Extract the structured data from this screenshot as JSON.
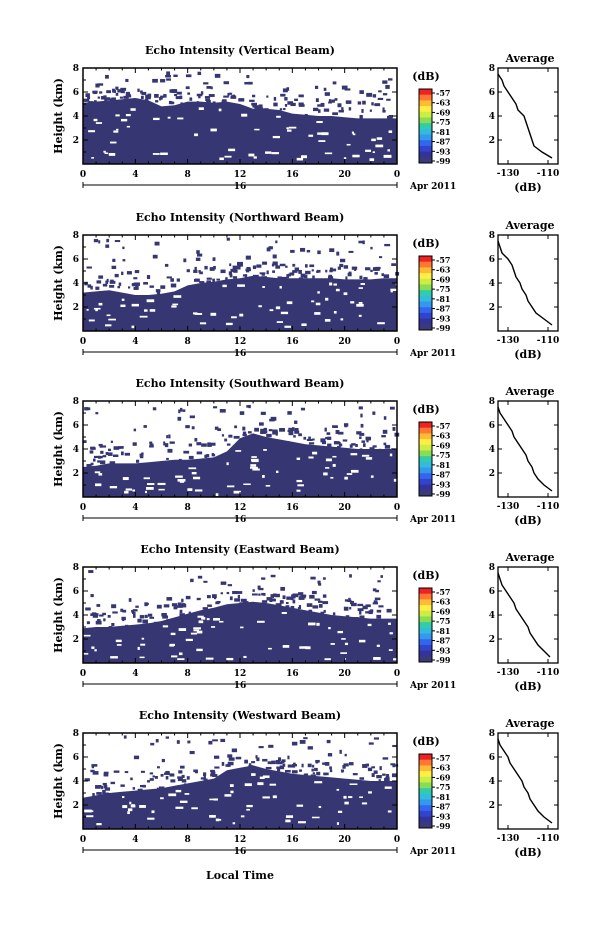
{
  "x_axis": {
    "ticks": [
      "0",
      "4",
      "8",
      "12",
      "16",
      "20",
      "0"
    ],
    "day": "16",
    "date_label": "Apr 2011",
    "title": "Local Time"
  },
  "colorbar": {
    "unit": "(dB)",
    "labels": [
      "-57",
      "-63",
      "-69",
      "-75",
      "-81",
      "-87",
      "-93",
      "-99"
    ],
    "colors": [
      "#ee2222",
      "#ff7733",
      "#ffbb33",
      "#ffee44",
      "#ccee44",
      "#88dd55",
      "#33ccaa",
      "#33bbdd",
      "#3399ee",
      "#3366ee",
      "#3344cc",
      "#333399",
      "#3a3a78"
    ]
  },
  "colors": {
    "echo_fill": "#363673"
  },
  "panels": [
    {
      "title": "Echo Intensity (Vertical Beam)",
      "ylabel": "Height (km)",
      "yticks": [
        "2",
        "4",
        "6",
        "8"
      ]
    },
    {
      "title": "Echo Intensity (Northward Beam)",
      "ylabel": "Height (km)",
      "yticks": [
        "2",
        "4",
        "6",
        "8"
      ]
    },
    {
      "title": "Echo Intensity (Southward Beam)",
      "ylabel": "Height (km)",
      "yticks": [
        "2",
        "4",
        "6",
        "8"
      ]
    },
    {
      "title": "Echo Intensity (Eastward Beam)",
      "ylabel": "Height (km)",
      "yticks": [
        "2",
        "4",
        "6",
        "8"
      ]
    },
    {
      "title": "Echo Intensity (Westward Beam)",
      "ylabel": "Height (km)",
      "yticks": [
        "2",
        "4",
        "6",
        "8"
      ]
    }
  ],
  "profile": {
    "title": "Average",
    "xlabel": "(dB)",
    "xticks": [
      "-130",
      "-110"
    ],
    "yticks": [
      "2",
      "4",
      "6",
      "8"
    ]
  },
  "chart_data": {
    "type": "heatmap",
    "x_unit": "local hour",
    "xlim": [
      0,
      24
    ],
    "ylim": [
      0,
      8
    ],
    "clim": [
      -99,
      -57
    ],
    "panels": [
      {
        "beam": "Vertical",
        "echo_top_km": [
          5.1,
          5.2,
          5.3,
          5.4,
          5.5,
          5.3,
          4.8,
          4.9,
          5.2,
          5.2,
          5.1,
          5.2,
          5.0,
          4.6,
          4.6,
          4.5,
          4.2,
          4.1,
          4.0,
          4.0,
          3.9,
          3.8,
          3.8,
          3.8,
          3.8
        ],
        "profile": {
          "km": [
            0.5,
            1.0,
            1.5,
            2.0,
            2.5,
            3.0,
            3.5,
            4.0,
            4.5,
            5.0,
            5.5,
            6.0,
            6.5,
            7.0,
            7.5
          ],
          "dB": [
            -108,
            -113,
            -117,
            -118,
            -119,
            -120,
            -121,
            -122,
            -125,
            -126,
            -128,
            -130,
            -132,
            -133,
            -135
          ]
        }
      },
      {
        "beam": "Northward",
        "echo_top_km": [
          3.2,
          3.3,
          3.4,
          3.2,
          3.0,
          3.0,
          3.1,
          3.3,
          3.8,
          4.0,
          4.1,
          4.3,
          4.4,
          4.6,
          4.5,
          4.4,
          4.4,
          4.4,
          4.4,
          4.4,
          4.3,
          4.3,
          4.3,
          4.4,
          4.4
        ],
        "profile": {
          "km": [
            0.5,
            1.0,
            1.5,
            2.0,
            2.5,
            3.0,
            3.5,
            4.0,
            4.5,
            5.0,
            5.5,
            6.0,
            6.5,
            7.0,
            7.5
          ],
          "dB": [
            -108,
            -112,
            -116,
            -118,
            -120,
            -121,
            -123,
            -124,
            -126,
            -127,
            -128,
            -130,
            -133,
            -134,
            -135
          ]
        }
      },
      {
        "beam": "Southward",
        "echo_top_km": [
          2.5,
          2.6,
          2.8,
          2.8,
          2.8,
          2.9,
          3.0,
          3.1,
          3.1,
          3.2,
          3.3,
          3.8,
          4.9,
          5.3,
          5.0,
          4.8,
          4.6,
          4.4,
          4.3,
          4.2,
          4.1,
          4.0,
          4.0,
          4.0,
          4.0
        ],
        "profile": {
          "km": [
            0.5,
            1.0,
            1.5,
            2.0,
            2.5,
            3.0,
            3.5,
            4.0,
            4.5,
            5.0,
            5.5,
            6.0,
            6.5,
            7.0,
            7.5
          ],
          "dB": [
            -108,
            -112,
            -115,
            -117,
            -118,
            -120,
            -121,
            -123,
            -125,
            -127,
            -128,
            -130,
            -132,
            -134,
            -135
          ]
        }
      },
      {
        "beam": "Eastward",
        "echo_top_km": [
          2.9,
          3.0,
          3.0,
          3.1,
          3.2,
          3.3,
          3.5,
          3.8,
          4.1,
          4.4,
          4.6,
          4.9,
          5.0,
          5.1,
          5.0,
          4.8,
          4.6,
          4.4,
          4.2,
          4.0,
          3.9,
          3.8,
          3.7,
          3.7,
          3.7
        ],
        "profile": {
          "km": [
            0.5,
            1.0,
            1.5,
            2.0,
            2.5,
            3.0,
            3.5,
            4.0,
            4.5,
            5.0,
            5.5,
            6.0,
            6.5,
            7.0,
            7.5
          ],
          "dB": [
            -109,
            -112,
            -115,
            -117,
            -119,
            -120,
            -122,
            -124,
            -126,
            -127,
            -129,
            -131,
            -133,
            -134,
            -135
          ]
        }
      },
      {
        "beam": "Westward",
        "echo_top_km": [
          2.6,
          2.8,
          3.0,
          3.1,
          3.2,
          3.3,
          3.4,
          3.6,
          3.8,
          4.0,
          4.2,
          4.9,
          5.1,
          5.3,
          5.0,
          4.8,
          4.6,
          4.5,
          4.4,
          4.3,
          4.2,
          4.1,
          4.0,
          4.0,
          4.0
        ],
        "profile": {
          "km": [
            0.5,
            1.0,
            1.5,
            2.0,
            2.5,
            3.0,
            3.5,
            4.0,
            4.5,
            5.0,
            5.5,
            6.0,
            6.5,
            7.0,
            7.5
          ],
          "dB": [
            -108,
            -112,
            -115,
            -117,
            -119,
            -120,
            -122,
            -123,
            -125,
            -127,
            -129,
            -130,
            -132,
            -134,
            -135
          ]
        }
      }
    ]
  }
}
